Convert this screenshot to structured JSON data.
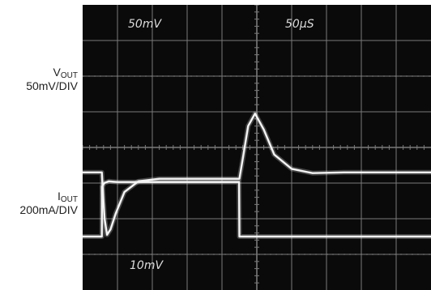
{
  "chart_data": {
    "type": "line",
    "title": "",
    "grid": true,
    "colors": {
      "background": "#0a0a0a",
      "grid": "#7a7a7a",
      "trace": "#f4f4f4",
      "screen_text": "#dcdcdc"
    },
    "channels": [
      {
        "id": "vout",
        "label_main": "V",
        "label_sub": "OUT",
        "label_scale": "50mV/DIV",
        "x": [
          0.0,
          0.55,
          0.58,
          0.63,
          0.7,
          0.8,
          0.95,
          1.2,
          1.6,
          2.2,
          3.3,
          3.55,
          4.5,
          4.6,
          4.75,
          4.95,
          5.2,
          5.5,
          6.0,
          6.6,
          7.5,
          8.5,
          10.0
        ],
        "y": [
          -0.7,
          -0.7,
          -1.2,
          -2.0,
          -2.45,
          -2.3,
          -1.85,
          -1.25,
          -0.95,
          -0.88,
          -0.88,
          -0.88,
          -0.88,
          -0.3,
          0.6,
          0.95,
          0.5,
          -0.2,
          -0.6,
          -0.72,
          -0.7,
          -0.7,
          -0.7
        ]
      },
      {
        "id": "iout",
        "label_main": "I",
        "label_sub": "OUT",
        "label_scale": "200mA/DIV",
        "x": [
          0.0,
          0.55,
          0.555,
          0.62,
          0.75,
          1.0,
          2.0,
          3.3,
          4.49,
          4.5,
          6.0,
          8.0,
          10.0
        ],
        "y": [
          -2.5,
          -2.5,
          -1.1,
          -1.0,
          -0.95,
          -0.97,
          -0.97,
          -0.97,
          -0.97,
          -2.5,
          -2.5,
          -2.5,
          -2.5
        ]
      }
    ],
    "screen_labels": {
      "ch1_scale": "50mV",
      "timebase": "50μS",
      "ch2_scale": "10mV"
    },
    "x_divisions": 10,
    "y_divisions": 8
  }
}
